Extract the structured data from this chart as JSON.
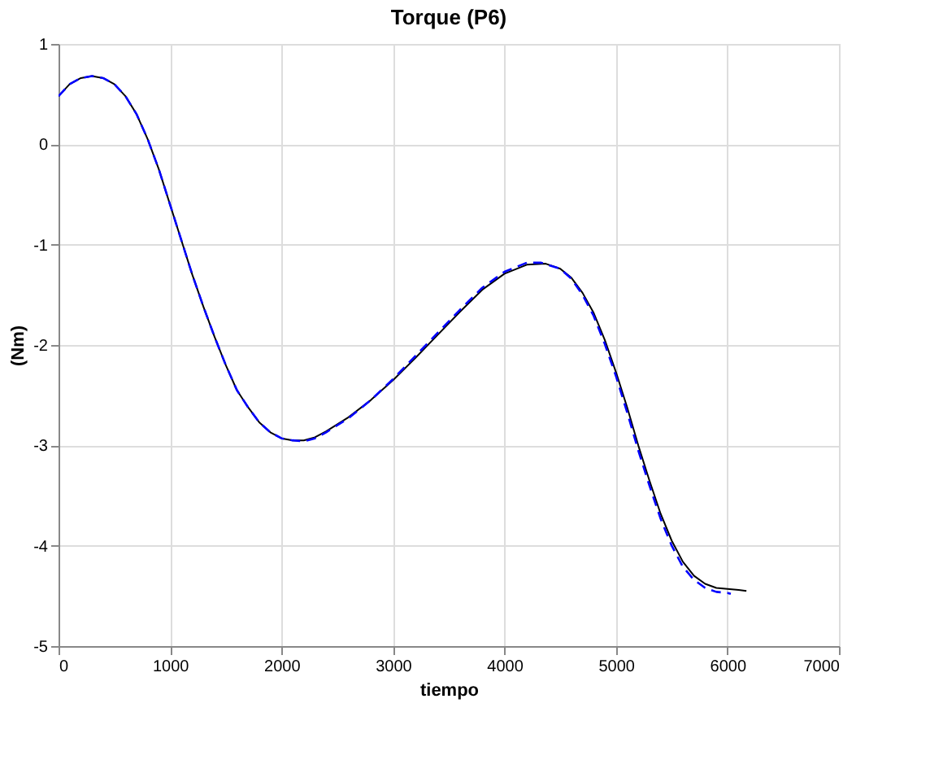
{
  "chart_data": {
    "type": "line",
    "title": "Torque (P6)",
    "xlabel": "tiempo",
    "ylabel": "(Nm)",
    "xlim": [
      0,
      7000
    ],
    "ylim": [
      -5,
      1
    ],
    "xticks": [
      0,
      1000,
      2000,
      3000,
      4000,
      5000,
      6000,
      7000
    ],
    "yticks": [
      -5,
      -4,
      -3,
      -2,
      -1,
      0,
      1
    ],
    "grid": true,
    "series": [
      {
        "color": "#000000",
        "line_style": "solid",
        "x": [
          0,
          100,
          200,
          300,
          400,
          500,
          600,
          700,
          800,
          900,
          1000,
          1100,
          1200,
          1300,
          1400,
          1500,
          1600,
          1700,
          1800,
          1900,
          2000,
          2100,
          2200,
          2300,
          2400,
          2600,
          2800,
          3000,
          3200,
          3400,
          3600,
          3800,
          4000,
          4200,
          4370,
          4500,
          4600,
          4700,
          4800,
          4900,
          5000,
          5100,
          5200,
          5300,
          5400,
          5500,
          5600,
          5700,
          5800,
          5900,
          6000,
          6100,
          6170
        ],
        "values": [
          0.48,
          0.6,
          0.66,
          0.68,
          0.66,
          0.6,
          0.48,
          0.3,
          0.05,
          -0.25,
          -0.6,
          -0.95,
          -1.3,
          -1.62,
          -1.92,
          -2.2,
          -2.45,
          -2.62,
          -2.77,
          -2.87,
          -2.93,
          -2.95,
          -2.95,
          -2.92,
          -2.86,
          -2.72,
          -2.55,
          -2.35,
          -2.13,
          -1.9,
          -1.67,
          -1.45,
          -1.29,
          -1.2,
          -1.19,
          -1.24,
          -1.33,
          -1.48,
          -1.68,
          -1.95,
          -2.27,
          -2.62,
          -3.0,
          -3.35,
          -3.68,
          -3.95,
          -4.16,
          -4.3,
          -4.38,
          -4.42,
          -4.43,
          -4.44,
          -4.45
        ]
      },
      {
        "color": "#0000ff",
        "line_style": "dashed",
        "x": [
          0,
          100,
          200,
          300,
          400,
          500,
          600,
          700,
          800,
          900,
          1000,
          1100,
          1200,
          1300,
          1400,
          1500,
          1600,
          1700,
          1800,
          1900,
          2000,
          2100,
          2200,
          2300,
          2400,
          2600,
          2800,
          3000,
          3200,
          3400,
          3600,
          3800,
          4000,
          4200,
          4330,
          4500,
          4600,
          4700,
          4800,
          4900,
          5000,
          5100,
          5200,
          5300,
          5400,
          5500,
          5600,
          5700,
          5800,
          5900,
          6000,
          6030
        ],
        "values": [
          0.48,
          0.6,
          0.66,
          0.68,
          0.66,
          0.6,
          0.48,
          0.3,
          0.05,
          -0.25,
          -0.6,
          -0.95,
          -1.3,
          -1.62,
          -1.92,
          -2.2,
          -2.45,
          -2.62,
          -2.77,
          -2.87,
          -2.93,
          -2.95,
          -2.96,
          -2.93,
          -2.87,
          -2.73,
          -2.55,
          -2.34,
          -2.11,
          -1.88,
          -1.65,
          -1.43,
          -1.27,
          -1.18,
          -1.18,
          -1.24,
          -1.34,
          -1.5,
          -1.71,
          -1.99,
          -2.31,
          -2.67,
          -3.05,
          -3.4,
          -3.73,
          -4.0,
          -4.21,
          -4.34,
          -4.42,
          -4.46,
          -4.47,
          -4.48
        ]
      }
    ]
  }
}
